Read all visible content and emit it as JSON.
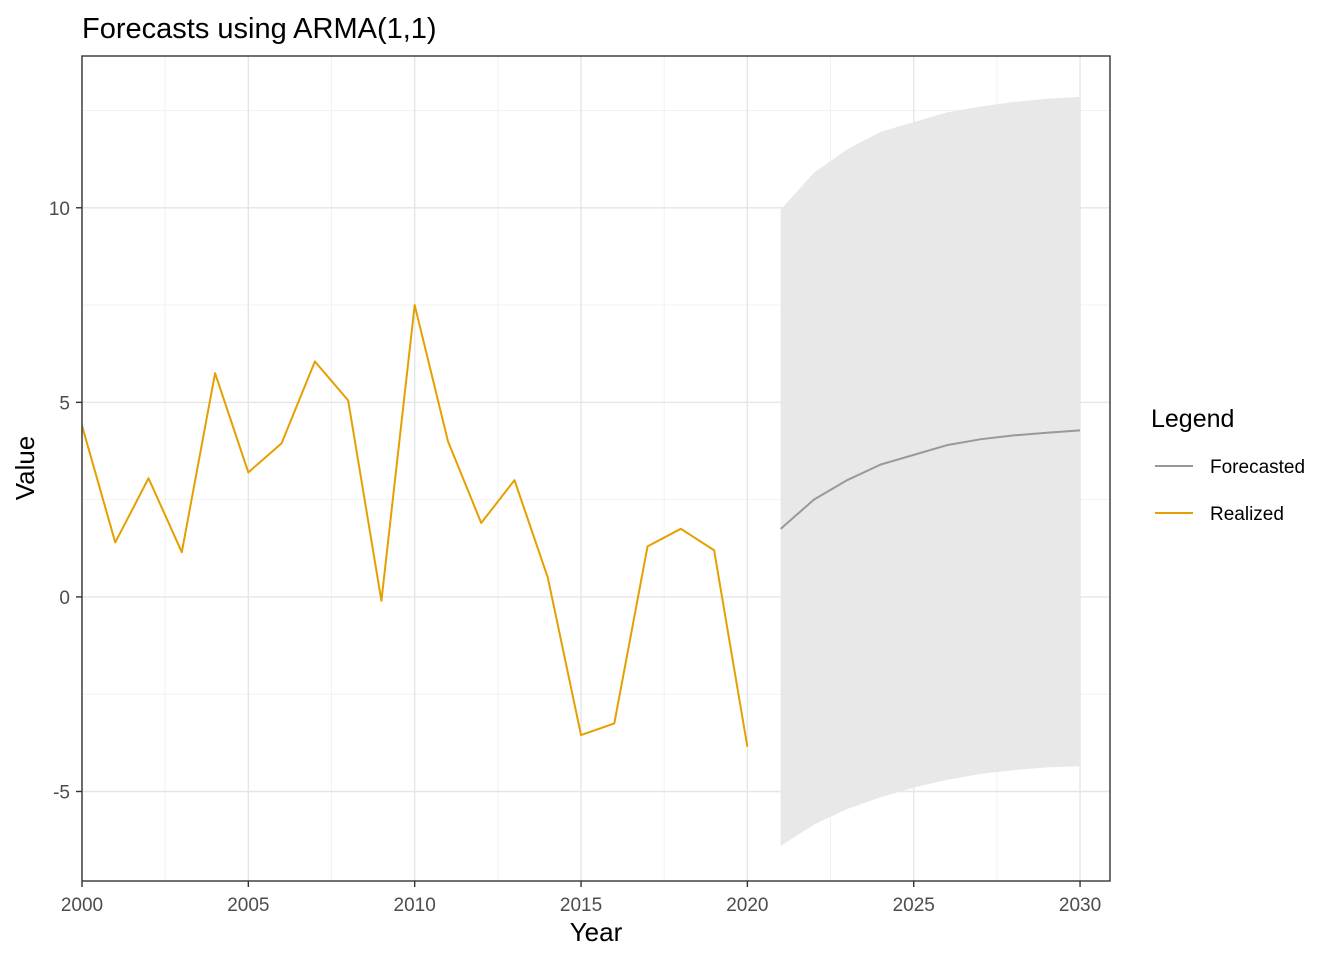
{
  "chart_data": {
    "type": "line",
    "title": "Forecasts using ARMA(1,1)",
    "xlabel": "Year",
    "ylabel": "Value",
    "xlim": [
      2000,
      2030.9
    ],
    "ylim": [
      -7.3,
      13.9
    ],
    "x_ticks": [
      2000,
      2005,
      2010,
      2015,
      2020,
      2025,
      2030
    ],
    "x_tick_labels": [
      "2000",
      "2005",
      "2010",
      "2015",
      "2020",
      "2025",
      "2030"
    ],
    "y_ticks": [
      -5,
      0,
      5,
      10
    ],
    "y_tick_labels": [
      "-5",
      "0",
      "5",
      "10"
    ],
    "grid": true,
    "legend": {
      "title": "Legend",
      "position": "right",
      "entries": [
        "Forecasted",
        "Realized"
      ]
    },
    "series": [
      {
        "name": "Realized",
        "color": "#E69F00",
        "x": [
          2000,
          2001,
          2002,
          2003,
          2004,
          2005,
          2006,
          2007,
          2008,
          2009,
          2010,
          2011,
          2012,
          2013,
          2014,
          2015,
          2016,
          2017,
          2018,
          2019,
          2020
        ],
        "y": [
          4.4,
          1.4,
          3.05,
          1.15,
          5.75,
          3.2,
          3.95,
          6.05,
          5.05,
          -0.1,
          7.5,
          4.0,
          1.9,
          3.0,
          0.5,
          -3.55,
          -3.25,
          1.3,
          1.75,
          1.2,
          -3.85
        ]
      },
      {
        "name": "Forecasted",
        "color": "#999999",
        "x": [
          2021,
          2022,
          2023,
          2024,
          2025,
          2026,
          2027,
          2028,
          2029,
          2030
        ],
        "y": [
          1.75,
          2.5,
          3.0,
          3.4,
          3.65,
          3.9,
          4.05,
          4.15,
          4.22,
          4.28
        ]
      }
    ],
    "interval": {
      "color": "#E8E8E8",
      "x": [
        2021,
        2022,
        2023,
        2024,
        2025,
        2026,
        2027,
        2028,
        2029,
        2030
      ],
      "lower": [
        -6.4,
        -5.85,
        -5.45,
        -5.15,
        -4.9,
        -4.7,
        -4.55,
        -4.45,
        -4.38,
        -4.35
      ],
      "upper": [
        9.95,
        10.9,
        11.5,
        11.95,
        12.2,
        12.45,
        12.6,
        12.72,
        12.8,
        12.85
      ]
    }
  }
}
